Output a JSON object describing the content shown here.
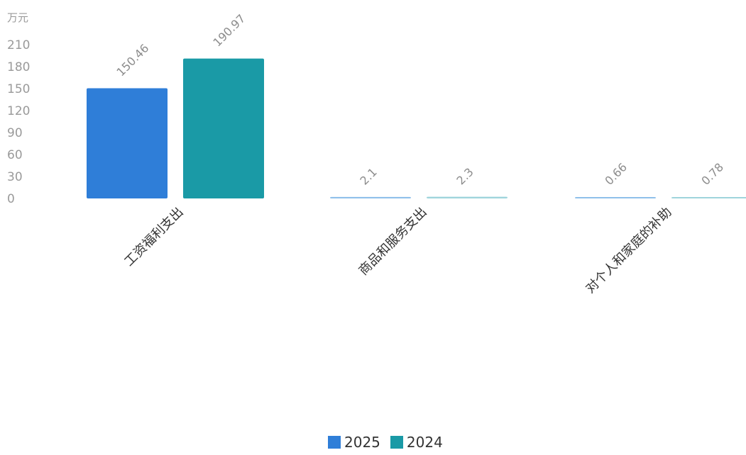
{
  "chart_data": {
    "type": "bar",
    "unit_label": "万元",
    "categories": [
      "工资福利支出",
      "商品和服务支出",
      "对个人和家庭的补助"
    ],
    "series": [
      {
        "name": "2025",
        "values": [
          150.46,
          2.1,
          0.66
        ],
        "labels": [
          "150.46",
          "2.1",
          "0.66"
        ],
        "color": "#2f7ed8"
      },
      {
        "name": "2024",
        "values": [
          190.97,
          2.3,
          0.78
        ],
        "labels": [
          "190.97",
          "2.3",
          "0.78"
        ],
        "color": "#1a9aa6"
      }
    ],
    "y_ticks": [
      0,
      30,
      60,
      90,
      120,
      150,
      180,
      210
    ],
    "ylim": [
      0,
      210
    ],
    "grid": false,
    "legend_position": "bottom-center"
  }
}
